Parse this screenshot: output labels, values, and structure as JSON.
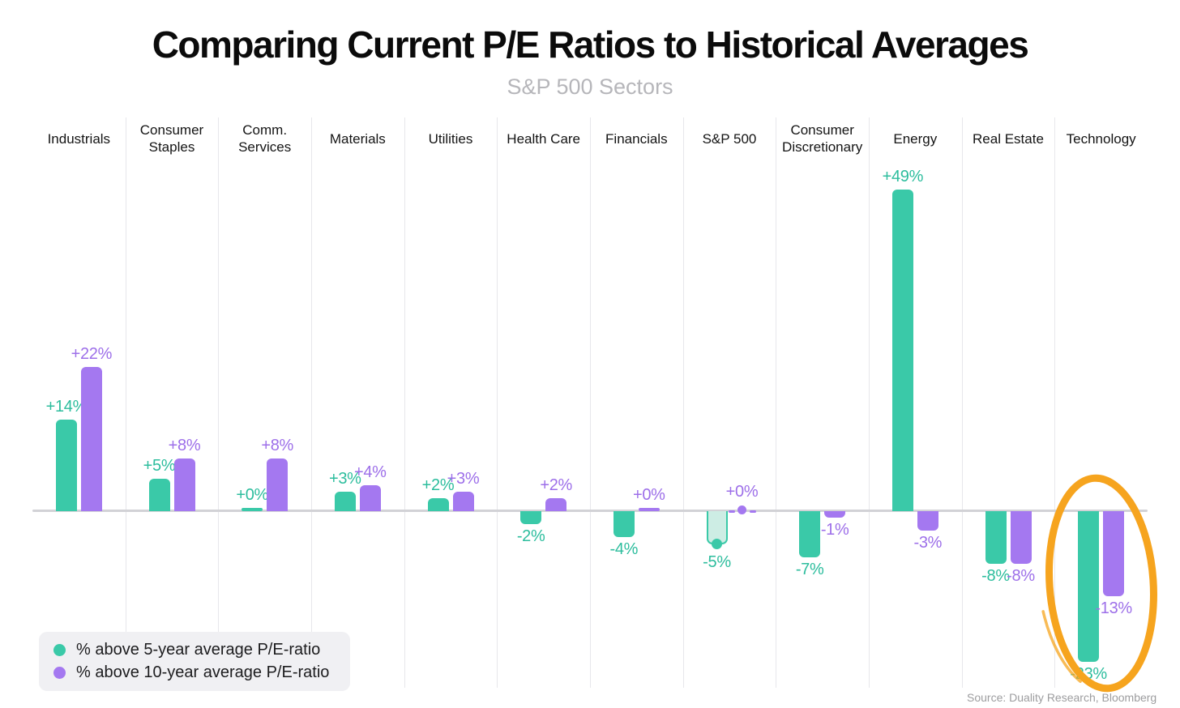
{
  "title": "Comparing Current P/E Ratios to Historical Averages",
  "subtitle": "S&P 500 Sectors",
  "source": "Source: Duality Research, Bloomberg",
  "legend": {
    "items": [
      {
        "label": "% above 5-year average P/E-ratio",
        "series": "5yr"
      },
      {
        "label": "% above 10-year average P/E-ratio",
        "series": "10yr"
      }
    ]
  },
  "colors": {
    "teal_bar": "#3ac9a8",
    "teal_text": "#2cbd9d",
    "teal_light_fill": "#cdede4",
    "purple_bar": "#a478f0",
    "purple_text": "#9d6fe9",
    "highlight_orange": "#f6a41e",
    "axis_line": "#d2d2d6",
    "divider_line": "#e7e7eb"
  },
  "chart_data": {
    "type": "bar",
    "title": "Comparing Current P/E Ratios to Historical Averages",
    "subtitle": "S&P 500 Sectors",
    "unit": "%",
    "baseline_value": 0,
    "grid": "vertical-dividers-only",
    "legend_position": "bottom-left",
    "categories": [
      "Industrials",
      "Consumer Staples",
      "Comm. Services",
      "Materials",
      "Utilities",
      "Health Care",
      "Financials",
      "S&P 500",
      "Consumer Discretionary",
      "Energy",
      "Real Estate",
      "Technology"
    ],
    "series": [
      {
        "name": "% above 5-year average P/E-ratio",
        "key": "5yr",
        "values": [
          14,
          5,
          0,
          3,
          2,
          -2,
          -4,
          -5,
          -7,
          49,
          -8,
          -23
        ],
        "labels": [
          "+14%",
          "+5%",
          "+0%",
          "+3%",
          "+2%",
          "-2%",
          "-4%",
          "-5%",
          "-7%",
          "+49%",
          "-8%",
          "-23%"
        ]
      },
      {
        "name": "% above 10-year average P/E-ratio",
        "key": "10yr",
        "values": [
          22,
          8,
          8,
          4,
          3,
          2,
          0,
          0,
          -1,
          -3,
          -8,
          -13
        ],
        "labels": [
          "+22%",
          "+8%",
          "+8%",
          "+4%",
          "+3%",
          "+2%",
          "+0%",
          "+0%",
          "-1%",
          "-3%",
          "-8%",
          "-13%"
        ]
      }
    ],
    "benchmark_category": "S&P 500",
    "highlighted_category": "Technology",
    "ylim": [
      -25,
      50
    ]
  }
}
